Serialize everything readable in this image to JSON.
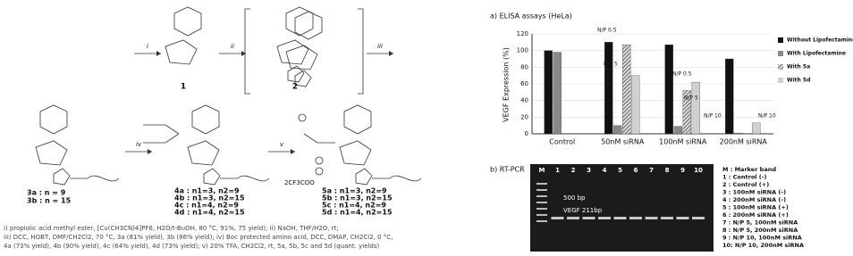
{
  "scheme": {
    "steps": [
      "i",
      "ii",
      "iii",
      "iv",
      "v"
    ],
    "compounds": [
      "1",
      "2"
    ],
    "series3": [
      "3a : n = 9",
      "3b : n = 15"
    ],
    "series4": [
      "4a : n1=3, n2=9",
      "4b : n1=3, n2=15",
      "4c : n1=4, n2=9",
      "4d : n1=4, n2=15"
    ],
    "series5": [
      "5a : n1=3, n2=9",
      "5b : n1=3, n2=15",
      "5c : n1=4, n2=9",
      "5d : n1=4, n2=15"
    ],
    "counterion": "2CF3COO",
    "conditions": [
      "i) propiolic acid methyl ester, [Cu(CH3CN)4]PF6, H2O/t-BuOH, 80 °C, 91%, 75 yield); ii) NaOH, THF/H2O, rt;",
      "iii) DCC, HOBT, DMF/CH2Cl2, 70 °C, 3a (81% yield), 3b (86% yield); iv) Boc protected amino acid, DCC, DMAP, CH2Cl2, 0 °C,",
      "4a (73% yield), 4b (90% yield), 4c (64% yield), 4d (73% yield); v) 20% TFA, CH2Cl2, rt, 5a, 5b, 5c and 5d (quant. yields)"
    ]
  },
  "chart_data": {
    "type": "bar",
    "title": "a) ELISA assays (HeLa)",
    "y_label": "VEGF Expression (%)",
    "categories": [
      "Control",
      "50nM siRNA",
      "100nM siRNA",
      "200nM siRNA"
    ],
    "series": [
      {
        "name": "Without Lipofectamine",
        "color": "#111111",
        "values": [
          100,
          110,
          107,
          90
        ]
      },
      {
        "name": "With Lipofectamine",
        "color": "#888888",
        "values": [
          98,
          10,
          9,
          1
        ]
      },
      {
        "name": "With 5a",
        "color": "#999999",
        "hatch": true,
        "values": [
          null,
          107,
          52,
          null
        ]
      },
      {
        "name": "With 5d",
        "color": "#d0d0d0",
        "values": [
          null,
          70,
          62,
          13
        ]
      }
    ],
    "annotations": [
      "N/P 0.5",
      "N/P 5",
      "N/P 0.5",
      "N/P 5",
      "N/P 10",
      "N/P 10"
    ],
    "ylim": [
      0,
      120
    ],
    "yticks": [
      0,
      20,
      40,
      60,
      80,
      100,
      120
    ],
    "grid": true,
    "legend": "right"
  },
  "gel": {
    "title": "b) RT-PCR",
    "lanes": [
      "M",
      "1",
      "2",
      "3",
      "4",
      "5",
      "6",
      "7",
      "8",
      "9",
      "10"
    ],
    "annotations": [
      "500 bp",
      "VEGF 211bp"
    ],
    "legend": [
      "M : Marker band",
      "1 : Control (-)",
      "2 : Control (+)",
      "3 : 100nM siRNA (-)",
      "4 : 200nM siRNA (-)",
      "5 : 100nM siRNA (+)",
      "6 : 200nM siRNA (+)",
      "7 : N/P 5, 100nM siRNA",
      "8 : N/P 5, 200nM siRNA",
      "9 : N/P 10, 100nM siRNA",
      "10: N/P 10, 200nM siRNA"
    ]
  }
}
